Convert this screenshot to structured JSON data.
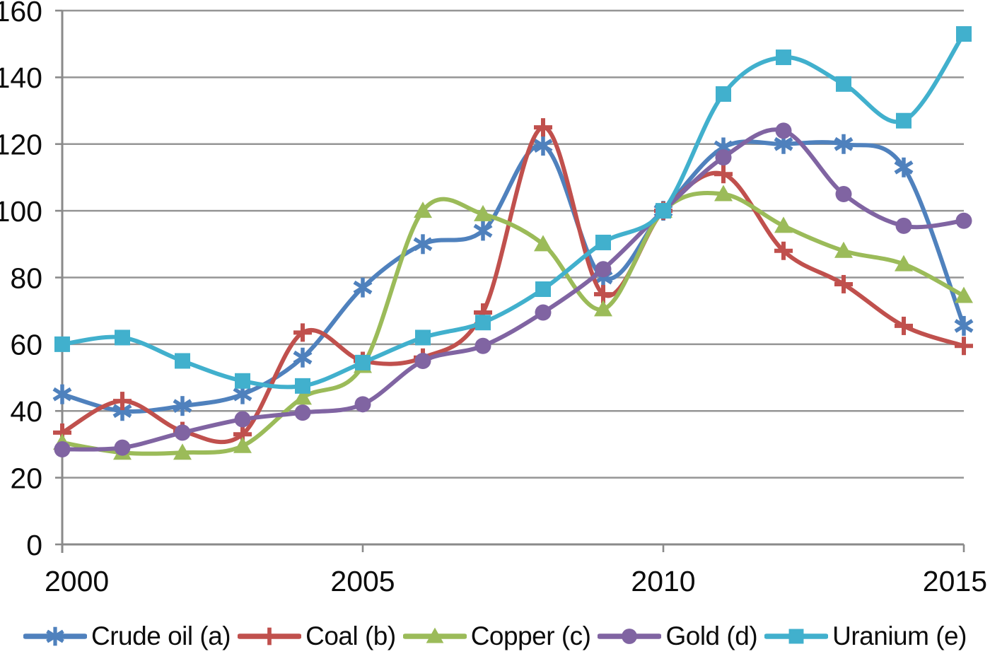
{
  "chart_data": {
    "type": "line",
    "title": "",
    "xlabel": "",
    "ylabel": "",
    "line_smoothing": true,
    "grid": true,
    "legend_position": "bottom",
    "axis_color": "#8a8a8a",
    "grid_color": "#959595",
    "text_color": "#0c0c0c",
    "background_color": "#ffffff",
    "x": [
      2000,
      2001,
      2002,
      2003,
      2004,
      2005,
      2006,
      2007,
      2008,
      2009,
      2010,
      2011,
      2012,
      2013,
      2014,
      2015
    ],
    "x_axis": {
      "range": [
        2000,
        2015
      ],
      "tick_labels": [
        "2000",
        "2005",
        "2010",
        "2015"
      ],
      "tick_positions": [
        2000,
        2005,
        2010,
        2015
      ]
    },
    "y_axis": {
      "range": [
        0,
        160
      ],
      "ticks": [
        0,
        20,
        40,
        60,
        80,
        100,
        120,
        140,
        160
      ],
      "tick_labels": [
        "0",
        "20",
        "40",
        "60",
        "80",
        "100",
        "120",
        "140",
        "160"
      ]
    },
    "series": [
      {
        "name": "Crude oil (a)",
        "color": "#4F81BD",
        "marker": "asterisk",
        "values": [
          45,
          40,
          41.5,
          45,
          56,
          77,
          90,
          94,
          119.5,
          80,
          100,
          119,
          120,
          120,
          113,
          65.5
        ]
      },
      {
        "name": "Coal (b)",
        "color": "#C0504D",
        "marker": "plus",
        "values": [
          33.5,
          43,
          34,
          33,
          63.5,
          55,
          56,
          69.5,
          125,
          75,
          100,
          111,
          88,
          78,
          65.5,
          59.5
        ]
      },
      {
        "name": "Copper (c)",
        "color": "#9BBB59",
        "marker": "triangle",
        "values": [
          30.5,
          27.5,
          27.5,
          29.5,
          44,
          53.5,
          100,
          99,
          90,
          70.5,
          100,
          105,
          95.5,
          88,
          84,
          74.5
        ]
      },
      {
        "name": "Gold (d)",
        "color": "#8064A2",
        "marker": "circle",
        "values": [
          28.5,
          29,
          33.5,
          37.5,
          39.5,
          42,
          55,
          59.5,
          69.5,
          82.5,
          100,
          116,
          124,
          105,
          95.5,
          97
        ]
      },
      {
        "name": "Uranium (e)",
        "color": "#41B0CD",
        "marker": "square",
        "values": [
          60,
          62,
          55,
          49,
          47.5,
          54.5,
          62,
          66.5,
          76.5,
          90.5,
          100,
          135,
          146,
          138,
          127,
          153
        ]
      }
    ]
  }
}
